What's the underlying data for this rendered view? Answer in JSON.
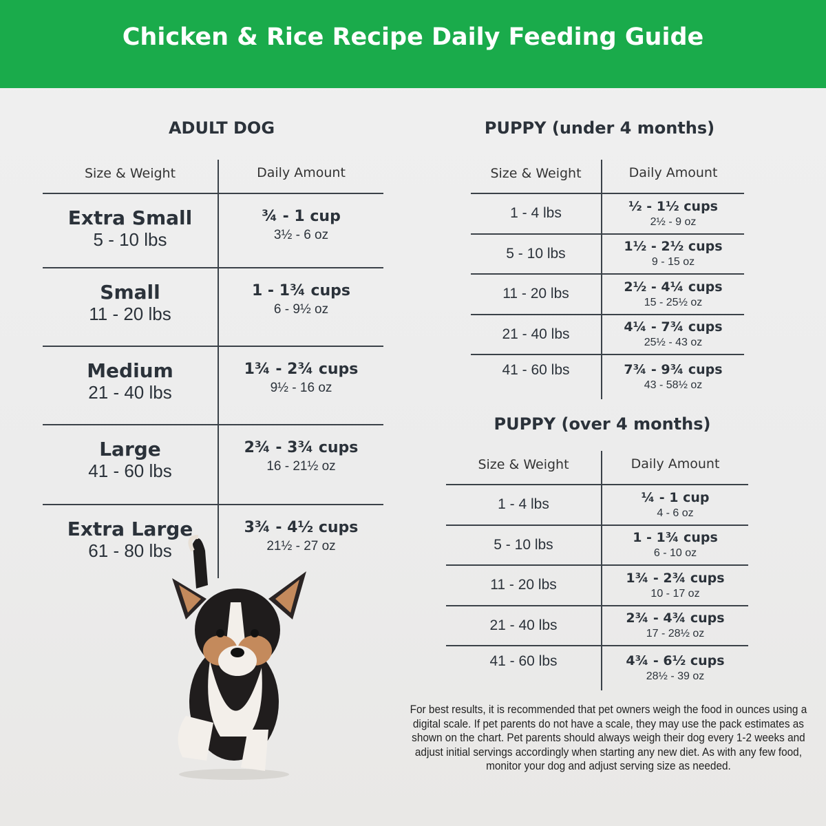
{
  "title": "Chicken & Rice Recipe Daily Feeding Guide",
  "colors": {
    "banner": "#1aab4b",
    "text": "#2b323a"
  },
  "adult": {
    "title": "ADULT DOG",
    "col1": "Size & Weight",
    "col2": "Daily Amount",
    "rows": [
      {
        "size": "Extra Small",
        "weight": "5 - 10 lbs",
        "cups": "¾ - 1 cup",
        "oz": "3½ - 6 oz"
      },
      {
        "size": "Small",
        "weight": "11 - 20 lbs",
        "cups": "1 - 1¾ cups",
        "oz": "6 - 9½ oz"
      },
      {
        "size": "Medium",
        "weight": "21 - 40 lbs",
        "cups": "1¾ - 2¾ cups",
        "oz": "9½ - 16 oz"
      },
      {
        "size": "Large",
        "weight": "41 - 60 lbs",
        "cups": "2¾ - 3¾ cups",
        "oz": "16 - 21½ oz"
      },
      {
        "size": "Extra Large",
        "weight": "61 - 80 lbs",
        "cups": "3¾ - 4½ cups",
        "oz": "21½ - 27 oz"
      }
    ]
  },
  "puppy_under": {
    "title": "PUPPY (under 4 months)",
    "col1": "Size & Weight",
    "col2": "Daily Amount",
    "rows": [
      {
        "weight": "1 - 4 lbs",
        "cups": "½ - 1½ cups",
        "oz": "2½ - 9 oz"
      },
      {
        "weight": "5 - 10 lbs",
        "cups": "1½ - 2½ cups",
        "oz": "9 - 15 oz"
      },
      {
        "weight": "11 - 20 lbs",
        "cups": "2½ - 4¼ cups",
        "oz": "15 - 25½ oz"
      },
      {
        "weight": "21 - 40 lbs",
        "cups": "4¼ - 7¾ cups",
        "oz": "25½ - 43 oz"
      },
      {
        "weight": "41 - 60 lbs",
        "cups": "7¾ - 9¾ cups",
        "oz": "43 - 58½ oz"
      }
    ]
  },
  "puppy_over": {
    "title": "PUPPY (over 4 months)",
    "col1": "Size & Weight",
    "col2": "Daily Amount",
    "rows": [
      {
        "weight": "1 - 4 lbs",
        "cups": "¼ - 1 cup",
        "oz": "4 - 6 oz"
      },
      {
        "weight": "5 - 10 lbs",
        "cups": "1 - 1¾ cups",
        "oz": "6 - 10 oz"
      },
      {
        "weight": "11 - 20 lbs",
        "cups": "1¾ - 2¾ cups",
        "oz": "10 - 17 oz"
      },
      {
        "weight": "21 - 40 lbs",
        "cups": "2¾ - 4¾ cups",
        "oz": "17 - 28½ oz"
      },
      {
        "weight": "41 - 60 lbs",
        "cups": "4¾ - 6½ cups",
        "oz": "28½ - 39 oz"
      }
    ]
  },
  "note": "For best results, it is recommended that pet owners weigh the food in ounces using a digital scale. If pet parents do not have a scale, they may use the pack estimates as shown on the chart. Pet parents should always weigh their dog every 1-2 weeks and adjust initial servings accordingly when starting any new diet. As with any few food, monitor your dog and adjust serving size as needed."
}
